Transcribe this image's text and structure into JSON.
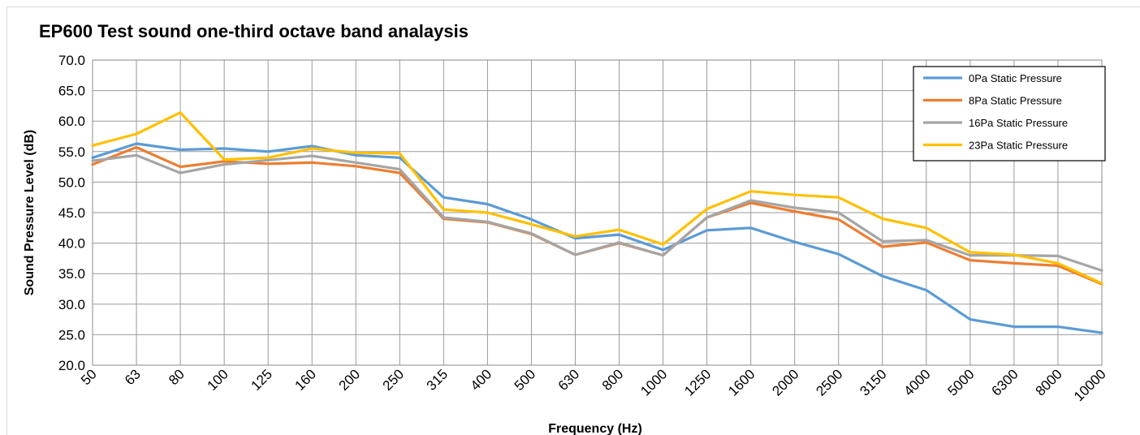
{
  "chart_data": {
    "type": "line",
    "title": "EP600 Test sound one-third octave band analaysis",
    "xlabel": "Frequency (Hz)",
    "ylabel": "Sound Pressure Level  (dB)",
    "ylim": [
      20,
      70
    ],
    "yticks": [
      "20.0",
      "25.0",
      "30.0",
      "35.0",
      "40.0",
      "45.0",
      "50.0",
      "55.0",
      "60.0",
      "65.0",
      "70.0"
    ],
    "grid": true,
    "legend_position": "top-right",
    "categories": [
      "50",
      "63",
      "80",
      "100",
      "125",
      "160",
      "200",
      "250",
      "315",
      "400",
      "500",
      "630",
      "800",
      "1000",
      "1250",
      "1600",
      "2000",
      "2500",
      "3150",
      "4000",
      "5000",
      "6300",
      "8000",
      "10000"
    ],
    "series": [
      {
        "name": "0Pa Static Pressure",
        "color": "#5b9bd5",
        "values": [
          54.0,
          56.3,
          55.3,
          55.5,
          55.0,
          55.9,
          54.4,
          54.0,
          47.5,
          46.4,
          43.9,
          40.8,
          41.4,
          38.9,
          42.1,
          42.5,
          40.2,
          38.2,
          34.6,
          32.3,
          27.5,
          26.3,
          26.3,
          25.3
        ]
      },
      {
        "name": "8Pa Static Pressure",
        "color": "#ed7d31",
        "values": [
          52.9,
          55.7,
          52.5,
          53.4,
          53.0,
          53.2,
          52.6,
          51.5,
          44.0,
          43.4,
          41.5,
          38.1,
          40.0,
          38.0,
          44.2,
          46.6,
          45.2,
          43.9,
          39.4,
          40.1,
          37.2,
          36.7,
          36.3,
          33.3
        ]
      },
      {
        "name": "16Pa Static Pressure",
        "color": "#a5a5a5",
        "values": [
          53.5,
          54.4,
          51.5,
          52.9,
          53.6,
          54.3,
          53.2,
          52.1,
          44.2,
          43.5,
          41.6,
          38.1,
          40.1,
          38.0,
          44.2,
          47.0,
          45.8,
          45.0,
          40.3,
          40.5,
          38.0,
          38.0,
          37.9,
          35.5
        ]
      },
      {
        "name": "23Pa Static Pressure",
        "color": "#ffc000",
        "values": [
          56.0,
          57.9,
          61.4,
          53.7,
          54.0,
          55.5,
          54.8,
          54.7,
          45.5,
          45.0,
          43.1,
          41.1,
          42.2,
          39.8,
          45.6,
          48.5,
          47.9,
          47.5,
          44.0,
          42.5,
          38.5,
          38.1,
          36.7,
          33.4
        ]
      }
    ]
  }
}
